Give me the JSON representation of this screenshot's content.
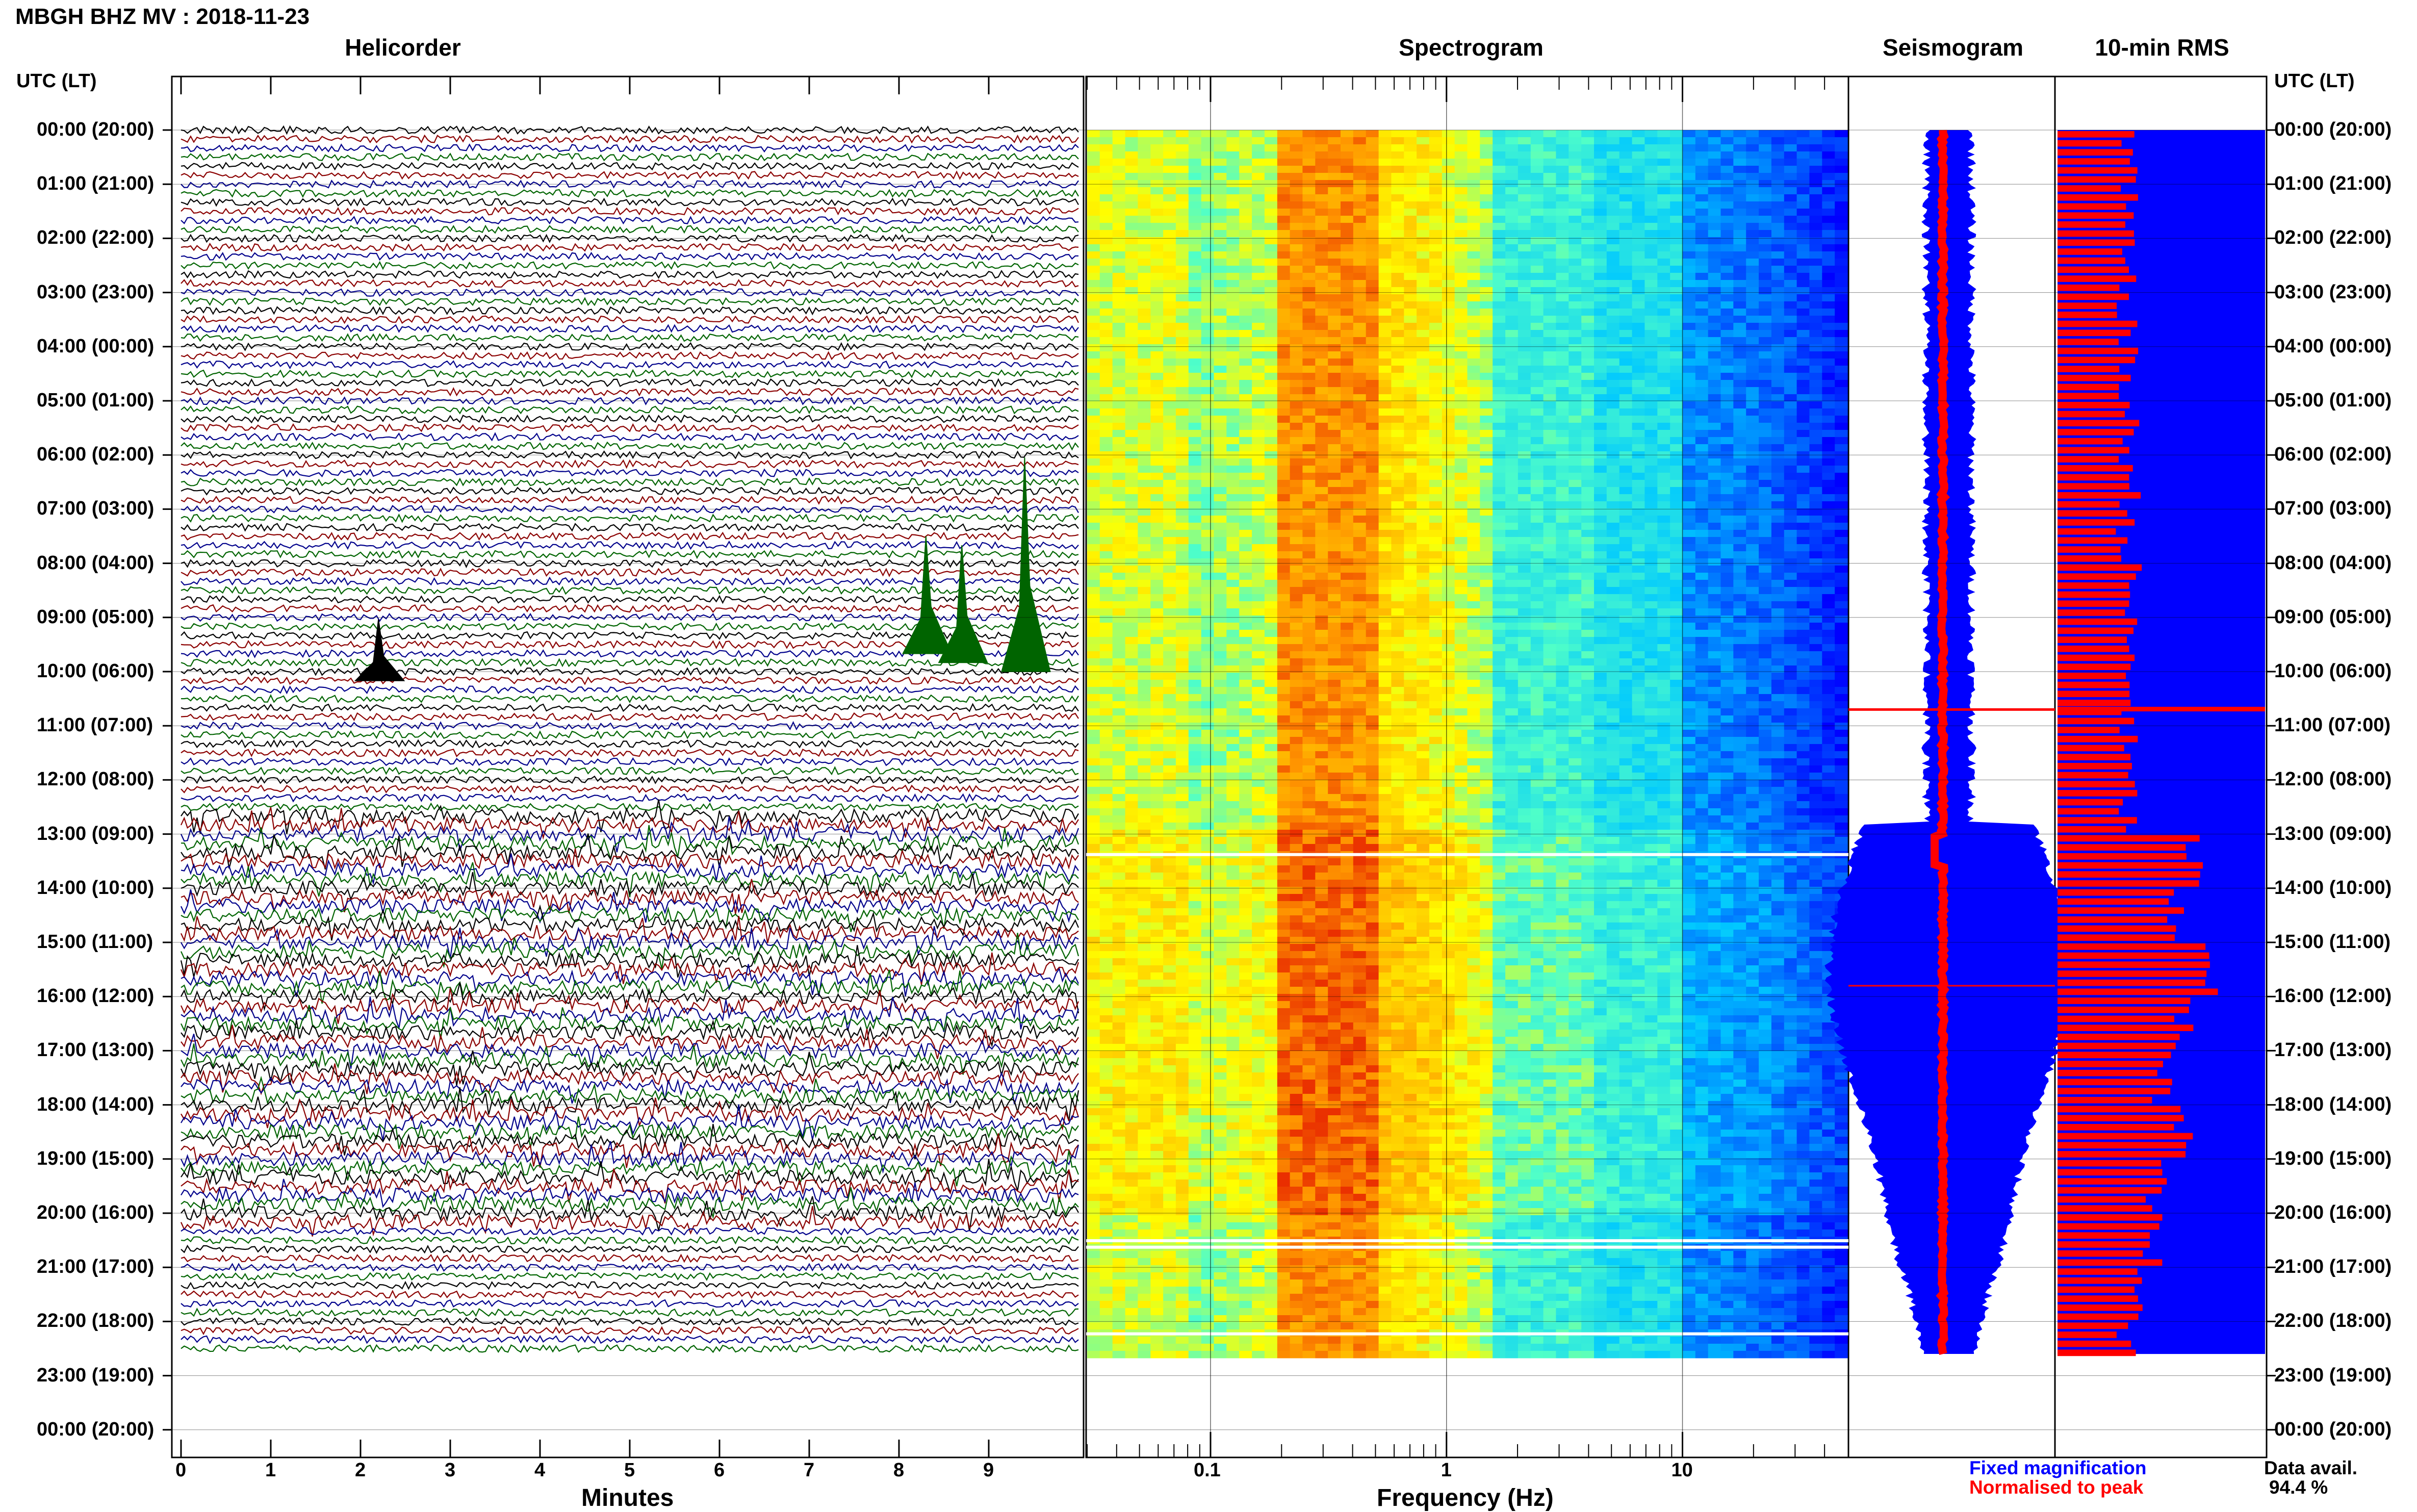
{
  "header": {
    "title": "MBGH BHZ MV : 2018-11-23"
  },
  "panels": {
    "helicorder": "Helicorder",
    "spectrogram": "Spectrogram",
    "seismogram": "Seismogram",
    "rms": "10-min RMS"
  },
  "time_axis": {
    "header": "UTC (LT)",
    "labels": [
      "00:00 (20:00)",
      "01:00 (21:00)",
      "02:00 (22:00)",
      "03:00 (23:00)",
      "04:00 (00:00)",
      "05:00 (01:00)",
      "06:00 (02:00)",
      "07:00 (03:00)",
      "08:00 (04:00)",
      "09:00 (05:00)",
      "10:00 (06:00)",
      "11:00 (07:00)",
      "12:00 (08:00)",
      "13:00 (09:00)",
      "14:00 (10:00)",
      "15:00 (11:00)",
      "16:00 (12:00)",
      "17:00 (13:00)",
      "18:00 (14:00)",
      "19:00 (15:00)",
      "20:00 (16:00)",
      "21:00 (17:00)",
      "22:00 (18:00)",
      "23:00 (19:00)",
      "00:00 (20:00)"
    ]
  },
  "helicorder_axis": {
    "label": "Minutes",
    "ticks": [
      "0",
      "1",
      "2",
      "3",
      "4",
      "5",
      "6",
      "7",
      "8",
      "9"
    ]
  },
  "spectrogram_axis": {
    "label": "Frequency (Hz)",
    "ticks": [
      "0.1",
      "1",
      "10"
    ]
  },
  "legend": {
    "fixed": "Fixed magnification",
    "normalised": "Normalised to peak",
    "avail_label": "Data avail.",
    "avail_value": "94.4 %",
    "fixed_color": "#0000ff",
    "normalised_color": "#ff0000"
  },
  "chart_data": [
    {
      "type": "line",
      "title": "Helicorder",
      "xlabel": "Minutes",
      "xlim": [
        0,
        10
      ],
      "ylabel": "UTC (LT)",
      "trace_colors": [
        "#000000",
        "#8b0000",
        "#00008b",
        "#006400"
      ],
      "events": [
        {
          "time_utc": "09:40",
          "minute": 8.3
        },
        {
          "time_utc": "09:50",
          "minute": 8.7
        },
        {
          "time_utc": "10:00",
          "minute": 9.4
        },
        {
          "time_utc": "10:10",
          "minute": 2.2
        }
      ]
    },
    {
      "type": "heatmap",
      "title": "Spectrogram",
      "xlabel": "Frequency (Hz)",
      "x_scale": "log",
      "xlim": [
        0.03,
        50
      ],
      "colormap": [
        "#0000ff",
        "#00ffff",
        "#ffff00",
        "#ff0000"
      ],
      "peak_band_hz": [
        0.25,
        0.5
      ]
    },
    {
      "type": "line",
      "title": "Seismogram",
      "series": [
        {
          "name": "Fixed magnification",
          "color": "#0000ff"
        },
        {
          "name": "Normalised to peak",
          "color": "#ff0000"
        }
      ]
    },
    {
      "type": "bar",
      "title": "10-min RMS",
      "ylabel": "UTC (LT)",
      "categories": [
        "00:00",
        "01:00",
        "02:00",
        "03:00",
        "04:00",
        "05:00",
        "06:00",
        "07:00",
        "08:00",
        "09:00",
        "10:00",
        "11:00",
        "12:00",
        "13:00",
        "14:00",
        "15:00",
        "16:00",
        "17:00",
        "18:00",
        "19:00",
        "20:00",
        "21:00",
        "22:00"
      ],
      "values": [
        0.35,
        0.33,
        0.32,
        0.34,
        0.33,
        0.34,
        0.35,
        0.34,
        0.35,
        0.34,
        0.35,
        0.33,
        0.34,
        0.65,
        0.55,
        0.75,
        0.6,
        0.5,
        0.62,
        0.48,
        0.45,
        0.38,
        0.34
      ]
    }
  ]
}
